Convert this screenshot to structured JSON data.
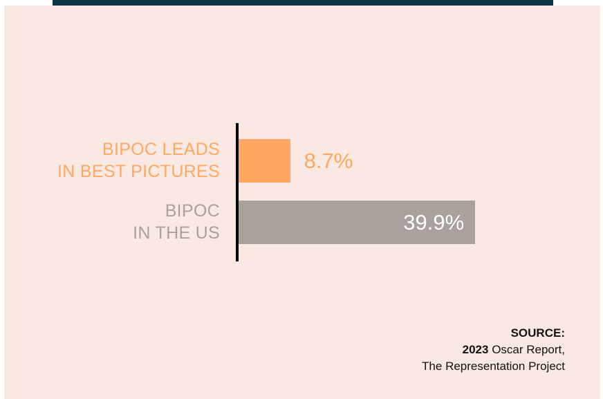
{
  "chart_data": {
    "type": "bar",
    "orientation": "horizontal",
    "categories": [
      "BIPOC LEADS\nIN BEST PICTURES",
      "BIPOC\nIN THE US"
    ],
    "values": [
      8.7,
      39.9
    ],
    "value_labels": [
      "8.7%",
      "39.9%"
    ],
    "colors": [
      "#ffa864",
      "#aaa19c"
    ],
    "xlim": [
      0,
      40
    ]
  },
  "source": {
    "heading": "SOURCE:",
    "year": "2023",
    "lines": [
      "Oscar Report,",
      "The Representation Project"
    ]
  }
}
